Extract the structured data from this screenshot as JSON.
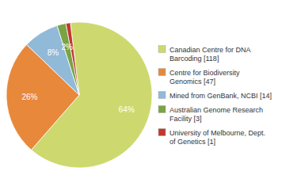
{
  "chart_data": {
    "type": "pie",
    "categories": [
      "Canadian Centre for DNA\nBarcoding [118]",
      "Centre for Biodiversity\nGenomics [47]",
      "Mined from GenBank, NCBI [14]",
      "Australian Genome Research\nFacility [3]",
      "University of Melbourne, Dept.\nof Genetics [1]"
    ],
    "values": [
      64,
      26,
      8,
      2,
      1
    ],
    "value_labels": [
      "64%",
      "26%",
      "8%",
      "2%",
      null
    ],
    "colors": [
      "#cdd96e",
      "#e8883a",
      "#91b9d8",
      "#7aa344",
      "#c0392b"
    ],
    "data_labels": true,
    "legend": "right"
  }
}
